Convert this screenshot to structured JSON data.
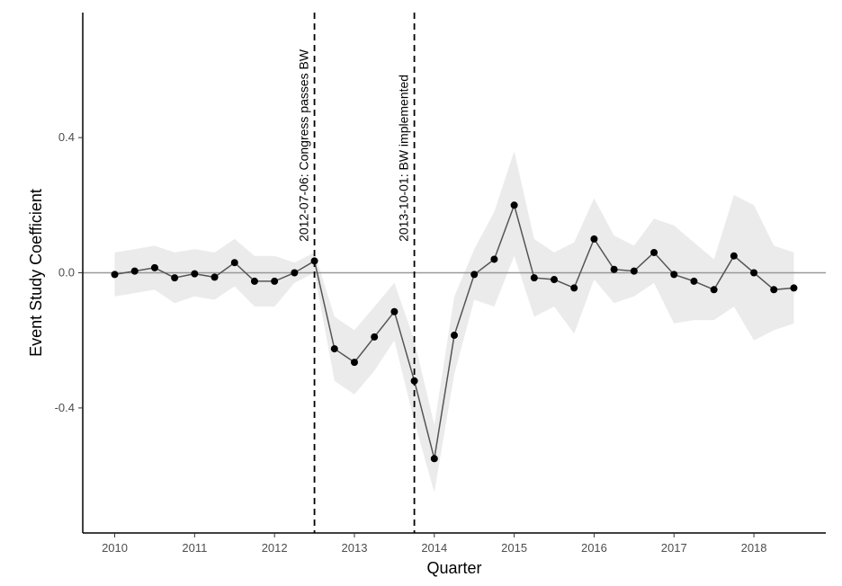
{
  "chart_data": {
    "type": "line",
    "xlabel": "Quarter",
    "ylabel": "Event Study Coefficient",
    "xlim": [
      2009.6,
      2018.9
    ],
    "ylim": [
      -0.77,
      0.77
    ],
    "x_ticks": [
      2010,
      2011,
      2012,
      2013,
      2014,
      2015,
      2016,
      2017,
      2018
    ],
    "x_tick_labels": [
      "2010",
      "2011",
      "2012",
      "2013",
      "2014",
      "2015",
      "2016",
      "2017",
      "2018"
    ],
    "y_ticks": [
      -0.4,
      0.0,
      0.4
    ],
    "y_tick_labels": [
      "-0.4",
      "0.0",
      "0.4"
    ],
    "zero_line": 0,
    "grid": false,
    "series": [
      {
        "x": [
          2010,
          2010.25,
          2010.5,
          2010.75,
          2011,
          2011.25,
          2011.5,
          2011.75,
          2012,
          2012.25,
          2012.5,
          2012.75,
          2013,
          2013.25,
          2013.5,
          2013.75,
          2014,
          2014.25,
          2014.5,
          2014.75,
          2015,
          2015.25,
          2015.5,
          2015.75,
          2016,
          2016.25,
          2016.5,
          2016.75,
          2017,
          2017.25,
          2017.5,
          2017.75,
          2018,
          2018.25,
          2018.5
        ],
        "y": [
          -0.005,
          0.005,
          0.015,
          -0.015,
          -0.003,
          -0.013,
          0.03,
          -0.025,
          -0.025,
          0.0,
          0.035,
          -0.225,
          -0.265,
          -0.19,
          -0.115,
          -0.32,
          -0.55,
          -0.185,
          -0.005,
          0.04,
          0.2,
          -0.015,
          -0.02,
          -0.045,
          0.1,
          0.01,
          0.005,
          0.06,
          -0.005,
          -0.025,
          -0.05,
          0.05,
          0.0,
          -0.05,
          -0.045
        ],
        "lower": [
          -0.07,
          -0.06,
          -0.05,
          -0.09,
          -0.07,
          -0.08,
          -0.04,
          -0.1,
          -0.1,
          -0.03,
          0.0,
          -0.32,
          -0.36,
          -0.29,
          -0.2,
          -0.44,
          -0.65,
          -0.3,
          -0.08,
          -0.1,
          0.05,
          -0.13,
          -0.1,
          -0.18,
          -0.02,
          -0.09,
          -0.07,
          -0.03,
          -0.15,
          -0.14,
          -0.14,
          -0.1,
          -0.2,
          -0.17,
          -0.15
        ],
        "upper": [
          0.06,
          0.07,
          0.08,
          0.06,
          0.07,
          0.06,
          0.1,
          0.05,
          0.05,
          0.03,
          0.06,
          -0.13,
          -0.17,
          -0.1,
          -0.03,
          -0.2,
          -0.45,
          -0.07,
          0.07,
          0.18,
          0.36,
          0.1,
          0.06,
          0.09,
          0.22,
          0.11,
          0.08,
          0.16,
          0.14,
          0.09,
          0.04,
          0.23,
          0.2,
          0.08,
          0.06
        ]
      }
    ],
    "vlines": [
      {
        "x": 2012.5,
        "label": "2012-07-06: Congress passes BW"
      },
      {
        "x": 2013.75,
        "label": "2013-10-01: BW implemented"
      }
    ],
    "colors": {
      "line": "#555555",
      "point": "#000000",
      "ribbon": "#ebebeb",
      "zero_line": "#999999",
      "axis": "#000000",
      "vline": "#000000"
    }
  }
}
